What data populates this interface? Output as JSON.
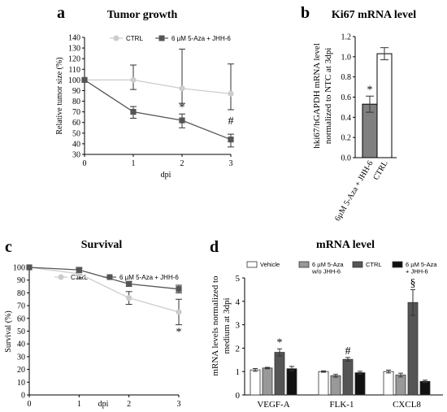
{
  "panels": {
    "a": {
      "letter": "a",
      "chart_data": {
        "type": "line",
        "title": "Tumor growth",
        "xlabel": "dpi",
        "ylabel": "Relative tumor size (%)",
        "x": [
          0,
          1,
          2,
          3
        ],
        "xlim": [
          0,
          3
        ],
        "ylim": [
          30,
          140
        ],
        "xticks": [
          "0",
          "1",
          "2",
          "3"
        ],
        "yticks": [
          "30",
          "40",
          "50",
          "60",
          "70",
          "80",
          "90",
          "100",
          "110",
          "120",
          "130",
          "140"
        ],
        "legend_position": "top",
        "series": [
          {
            "name": "CTRL",
            "values": [
              100,
              100,
              92,
              87
            ],
            "err_up": [
              0,
              14,
              37,
              28
            ],
            "err_down": [
              0,
              9,
              14,
              15
            ],
            "color": "#cccccc"
          },
          {
            "name": "6 µM 5-Aza + JHH-6",
            "values": [
              100,
              70,
              62,
              44
            ],
            "err_up": [
              0,
              5,
              6,
              5
            ],
            "err_down": [
              0,
              6,
              7,
              7
            ],
            "color": "#555555"
          }
        ],
        "annotations": [
          {
            "x": 2,
            "y": 75,
            "text": "*"
          },
          {
            "x": 3,
            "y": 62,
            "text": "#"
          }
        ]
      }
    },
    "b": {
      "letter": "b",
      "chart_data": {
        "type": "bar",
        "title": "Ki67 mRNA level",
        "ylabel": "hki67/hGAPDH mRNA level normalized to NTC at 3dpi",
        "ylabel_lines": [
          "hki67/hGAPDH mRNA level",
          "normalized to NTC at 3dpi"
        ],
        "categories": [
          "6µM 5-Aza + JHH-6",
          "CTRL"
        ],
        "values": [
          0.53,
          1.03
        ],
        "errors": [
          0.08,
          0.06
        ],
        "colors": [
          "#808080",
          "#ffffff"
        ],
        "ylim": [
          0,
          1.2
        ],
        "yticks": [
          "0.0",
          "0.2",
          "0.4",
          "0.6",
          "0.8",
          "1.0",
          "1.2"
        ],
        "annotations": [
          {
            "category": "6µM 5-Aza + JHH-6",
            "text": "*"
          }
        ]
      }
    },
    "c": {
      "letter": "c",
      "chart_data": {
        "type": "line",
        "title": "Survival",
        "xlabel": "dpi",
        "ylabel": "Survival (%)",
        "x": [
          0,
          1,
          2,
          3
        ],
        "xlim": [
          0,
          3
        ],
        "ylim": [
          0,
          100
        ],
        "xticks": [
          "0",
          "1",
          "2",
          "3"
        ],
        "yticks": [
          "0",
          "10",
          "20",
          "30",
          "40",
          "50",
          "60",
          "70",
          "80",
          "90",
          "100"
        ],
        "legend_position": "top",
        "series": [
          {
            "name": "CTRL",
            "values": [
              100,
              95,
              76,
              65
            ],
            "err": [
              0,
              4,
              5,
              10
            ],
            "color": "#cccccc"
          },
          {
            "name": "6 µM 5-Aza + JHH-6",
            "values": [
              100,
              98,
              87,
              83
            ],
            "err": [
              0,
              2,
              2,
              3
            ],
            "color": "#555555"
          }
        ],
        "annotations": [
          {
            "x": 3,
            "y": 50,
            "text": "*"
          }
        ]
      }
    },
    "d": {
      "letter": "d",
      "chart_data": {
        "type": "bar",
        "title": "mRNA level",
        "ylabel": "mRNA levels normalized to medium at 3dpi",
        "ylabel_lines": [
          "mRNA levels normalized to",
          "medium at 3dpi"
        ],
        "categories": [
          "VEGF-A",
          "FLK-1",
          "CXCL8"
        ],
        "ylim": [
          0,
          5
        ],
        "yticks": [
          "0",
          "1",
          "2",
          "3",
          "4",
          "5"
        ],
        "legend_position": "top",
        "series": [
          {
            "name": "Vehicle",
            "legend_lines": [
              "Vehicle"
            ],
            "values": [
              1.07,
              1.0,
              1.0
            ],
            "errors": [
              0.06,
              0.03,
              0.06
            ],
            "color": "#ffffff"
          },
          {
            "name": "6 µM 5-Aza w/o JHH-6",
            "legend_lines": [
              "6 µM 5-Aza",
              "w/o JHH-6"
            ],
            "values": [
              1.15,
              0.82,
              0.85
            ],
            "errors": [
              0.03,
              0.06,
              0.08
            ],
            "color": "#999999"
          },
          {
            "name": "CTRL",
            "legend_lines": [
              "CTRL"
            ],
            "values": [
              1.82,
              1.52,
              3.95
            ],
            "errors": [
              0.15,
              0.08,
              0.55
            ],
            "color": "#555555"
          },
          {
            "name": "6 µM 5-Aza + JHH-6",
            "legend_lines": [
              "6 µM 5-Aza",
              "+ JHH-6"
            ],
            "values": [
              1.12,
              0.95,
              0.58
            ],
            "errors": [
              0.1,
              0.06,
              0.05
            ],
            "color": "#111111"
          }
        ],
        "annotations": [
          {
            "category": "VEGF-A",
            "series": "CTRL",
            "text": "*"
          },
          {
            "category": "FLK-1",
            "series": "CTRL",
            "text": "#"
          },
          {
            "category": "CXCL8",
            "series": "CTRL",
            "text": "§"
          }
        ]
      }
    }
  }
}
